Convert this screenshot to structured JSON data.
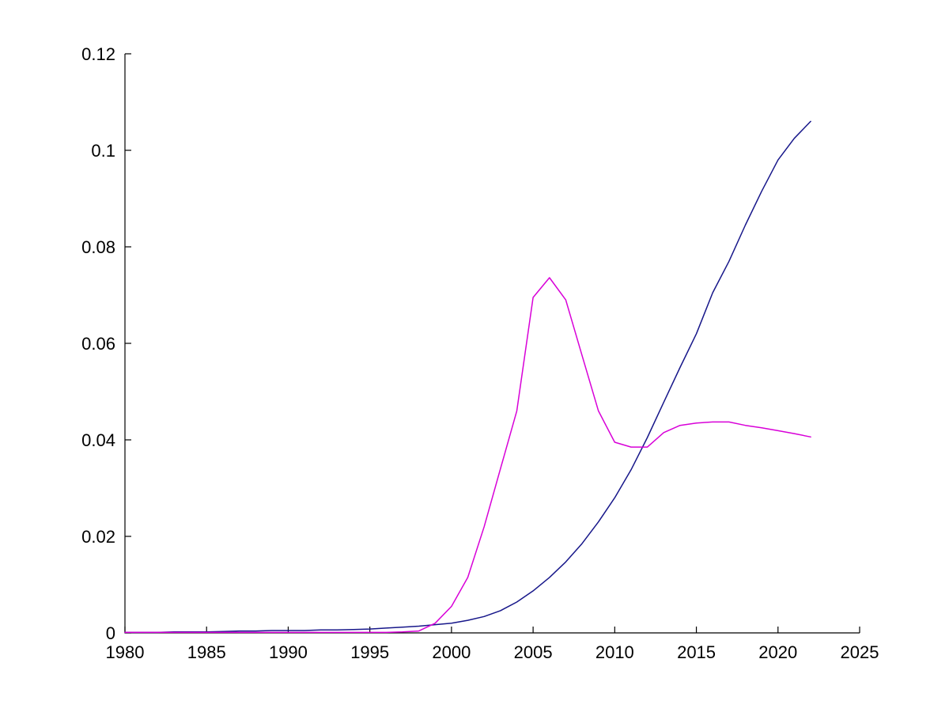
{
  "figure": {
    "background": "#ffffff",
    "axis_color": "#000000",
    "title": ""
  },
  "chart_data": {
    "type": "line",
    "title": "",
    "xlabel": "",
    "ylabel": "",
    "grid": false,
    "legend": "none",
    "xlim": [
      1980,
      2025
    ],
    "ylim": [
      0,
      0.12
    ],
    "xtick_values": [
      1980,
      1985,
      1990,
      1995,
      2000,
      2005,
      2010,
      2015,
      2020,
      2025
    ],
    "xtick_labels": [
      "1980",
      "1985",
      "1990",
      "1995",
      "2000",
      "2005",
      "2010",
      "2015",
      "2020",
      "2025"
    ],
    "ytick_values": [
      0,
      0.02,
      0.04,
      0.06,
      0.08,
      0.1,
      0.12
    ],
    "ytick_labels": [
      "0",
      "0.02",
      "0.04",
      "0.06",
      "0.08",
      "0.1",
      "0.12"
    ],
    "x": [
      1980,
      1981,
      1982,
      1983,
      1984,
      1985,
      1986,
      1987,
      1988,
      1989,
      1990,
      1991,
      1992,
      1993,
      1994,
      1995,
      1996,
      1997,
      1998,
      1999,
      2000,
      2001,
      2002,
      2003,
      2004,
      2005,
      2006,
      2007,
      2008,
      2009,
      2010,
      2011,
      2012,
      2013,
      2014,
      2015,
      2016,
      2017,
      2018,
      2019,
      2020,
      2021,
      2022
    ],
    "series": [
      {
        "name": "dark-blue-line",
        "color": "#17178A",
        "values": [
          0.0001,
          0.0001,
          0.0001,
          0.0002,
          0.0002,
          0.0002,
          0.0003,
          0.0004,
          0.0004,
          0.0005,
          0.0005,
          0.0005,
          0.0006,
          0.0006,
          0.0007,
          0.0008,
          0.001,
          0.0012,
          0.0014,
          0.0017,
          0.002,
          0.0026,
          0.0034,
          0.0046,
          0.0064,
          0.0087,
          0.0115,
          0.0147,
          0.0185,
          0.023,
          0.028,
          0.0338,
          0.0405,
          0.0478,
          0.055,
          0.062,
          0.0705,
          0.077,
          0.0845,
          0.0915,
          0.098,
          0.1025,
          0.106
        ]
      },
      {
        "name": "magenta-line",
        "color": "#D800D8",
        "values": [
          0.0001,
          0.0001,
          0.0001,
          0.0001,
          0.0001,
          0.0001,
          0.0001,
          0.0001,
          0.0001,
          0.0001,
          0.0001,
          0.0001,
          0.0001,
          0.0001,
          0.0001,
          0.0001,
          0.0001,
          0.0002,
          0.0004,
          0.002,
          0.0055,
          0.0115,
          0.022,
          0.034,
          0.046,
          0.0695,
          0.0736,
          0.069,
          0.0575,
          0.046,
          0.0395,
          0.0385,
          0.0385,
          0.0415,
          0.043,
          0.0435,
          0.0437,
          0.0437,
          0.043,
          0.0425,
          0.0419,
          0.0413,
          0.0406
        ]
      }
    ]
  }
}
